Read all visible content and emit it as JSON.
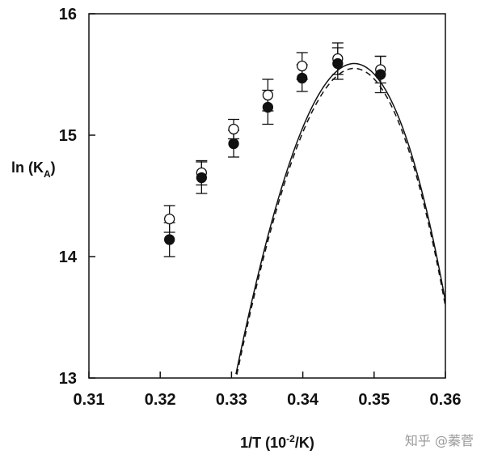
{
  "chart_data": {
    "type": "scatter",
    "xlabel_main": "1/T (10",
    "xlabel_sup": "-2",
    "xlabel_end": "/K)",
    "ylabel_main": "ln (K",
    "ylabel_sub": "A",
    "ylabel_end": ")",
    "xlim": [
      0.31,
      0.36
    ],
    "ylim": [
      13,
      16
    ],
    "x_ticks": [
      0.31,
      0.32,
      0.33,
      0.34,
      0.35,
      0.36
    ],
    "x_tick_labels": [
      "0.31",
      "0.32",
      "0.33",
      "0.34",
      "0.35",
      "0.36"
    ],
    "y_ticks": [
      13,
      14,
      15,
      16
    ],
    "y_tick_labels": [
      "13",
      "14",
      "15",
      "16"
    ],
    "grid": false,
    "legend": "none",
    "series": [
      {
        "marker": "open-circle",
        "points": [
          {
            "x": 0.3213,
            "y": 14.31,
            "err": 0.11
          },
          {
            "x": 0.3258,
            "y": 14.69,
            "err": 0.1
          },
          {
            "x": 0.3303,
            "y": 15.05,
            "err": 0.08
          },
          {
            "x": 0.3351,
            "y": 15.33,
            "err": 0.13
          },
          {
            "x": 0.3399,
            "y": 15.57,
            "err": 0.11
          },
          {
            "x": 0.3449,
            "y": 15.63,
            "err": 0.13
          },
          {
            "x": 0.3509,
            "y": 15.54,
            "err": 0.11
          }
        ]
      },
      {
        "marker": "filled-circle",
        "points": [
          {
            "x": 0.3213,
            "y": 14.14,
            "err": 0.14
          },
          {
            "x": 0.3258,
            "y": 14.65,
            "err": 0.13
          },
          {
            "x": 0.3303,
            "y": 14.93,
            "err": 0.11
          },
          {
            "x": 0.3351,
            "y": 15.23,
            "err": 0.14
          },
          {
            "x": 0.3399,
            "y": 15.47,
            "err": 0.11
          },
          {
            "x": 0.3449,
            "y": 15.59,
            "err": 0.13
          },
          {
            "x": 0.3509,
            "y": 15.5,
            "err": 0.15
          }
        ]
      }
    ],
    "fit_curves": [
      {
        "style": "solid",
        "x0": 0.3472,
        "ymax": 15.59,
        "a": 10800,
        "b": 90000
      },
      {
        "style": "dashed",
        "x0": 0.3472,
        "ymax": 15.55,
        "a": 10800,
        "b": 90000
      }
    ]
  },
  "watermark": "知乎 @蓁菅"
}
